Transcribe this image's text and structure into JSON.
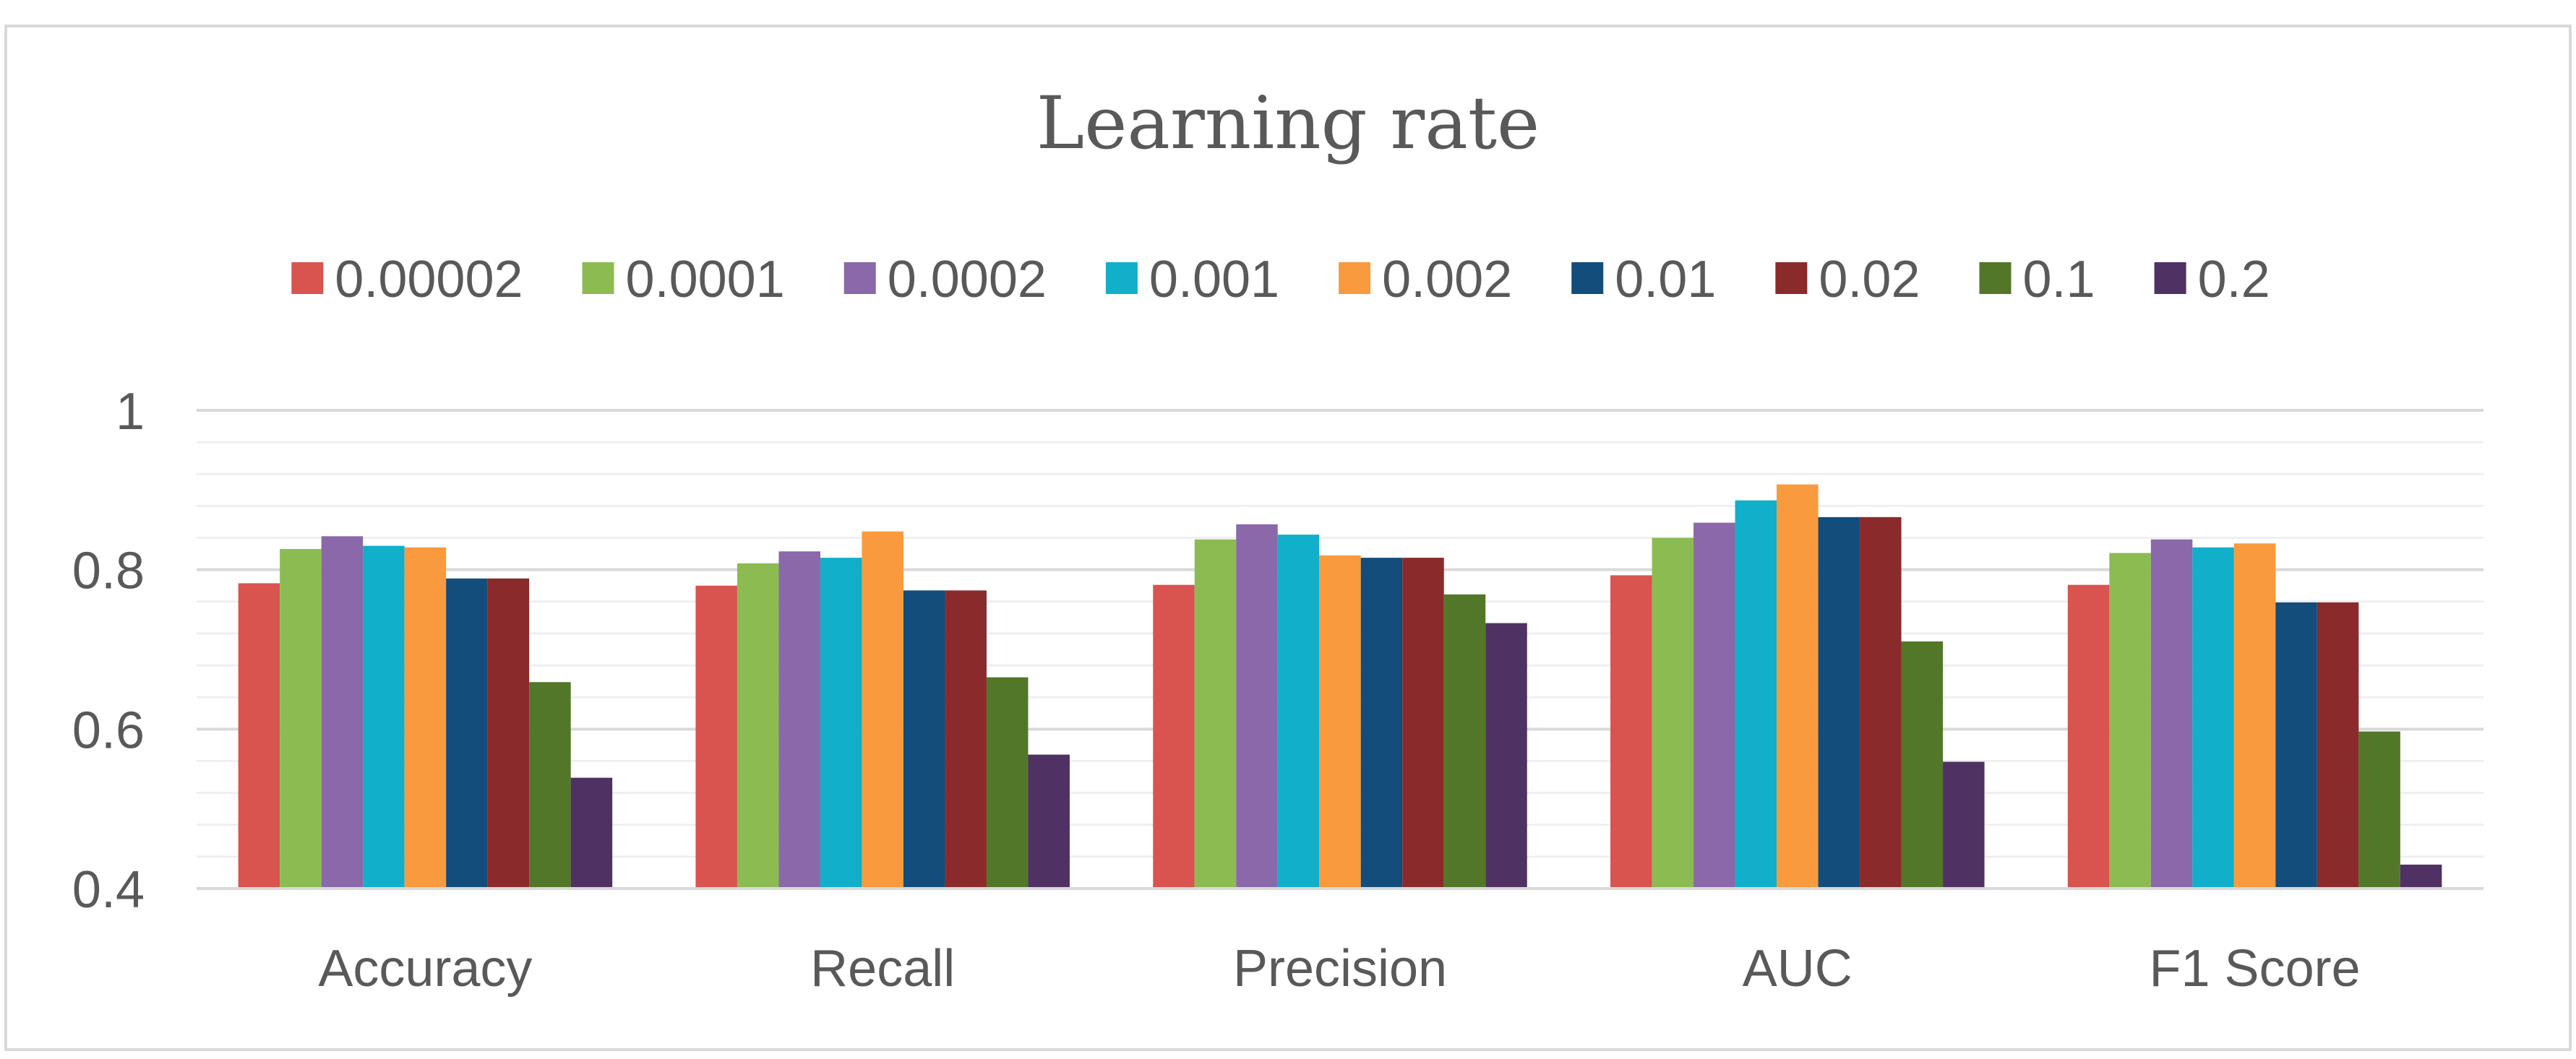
{
  "chart_data": {
    "type": "bar",
    "title": "Learning rate",
    "categories": [
      "Accuracy",
      "Recall",
      "Precision",
      "AUC",
      "F1 Score"
    ],
    "series": [
      {
        "name": "0.00002",
        "color": "#d9534f",
        "values": [
          0.783,
          0.78,
          0.781,
          0.793,
          0.781
        ]
      },
      {
        "name": "0.0001",
        "color": "#8cbb52",
        "values": [
          0.826,
          0.808,
          0.838,
          0.84,
          0.821
        ]
      },
      {
        "name": "0.0002",
        "color": "#8a68aa",
        "values": [
          0.842,
          0.823,
          0.857,
          0.859,
          0.838
        ]
      },
      {
        "name": "0.001",
        "color": "#11afc9",
        "values": [
          0.83,
          0.815,
          0.844,
          0.887,
          0.828
        ]
      },
      {
        "name": "0.002",
        "color": "#f99a3e",
        "values": [
          0.828,
          0.848,
          0.818,
          0.907,
          0.833
        ]
      },
      {
        "name": "0.01",
        "color": "#124d7b",
        "values": [
          0.789,
          0.774,
          0.815,
          0.866,
          0.759
        ]
      },
      {
        "name": "0.02",
        "color": "#8b2a2a",
        "values": [
          0.789,
          0.774,
          0.815,
          0.866,
          0.759
        ]
      },
      {
        "name": "0.1",
        "color": "#527728",
        "values": [
          0.659,
          0.665,
          0.769,
          0.71,
          0.597
        ]
      },
      {
        "name": "0.2",
        "color": "#4f3163",
        "values": [
          0.539,
          0.568,
          0.733,
          0.559,
          0.43
        ]
      }
    ],
    "y_ticks": [
      "0.4",
      "0.6",
      "0.8",
      "1"
    ],
    "ylim": [
      0.4,
      1.0
    ],
    "y_tick_step": 0.2,
    "y_minor_step": 0.04,
    "grid": true,
    "legend_position": "top",
    "xlabel": "",
    "ylabel": ""
  }
}
